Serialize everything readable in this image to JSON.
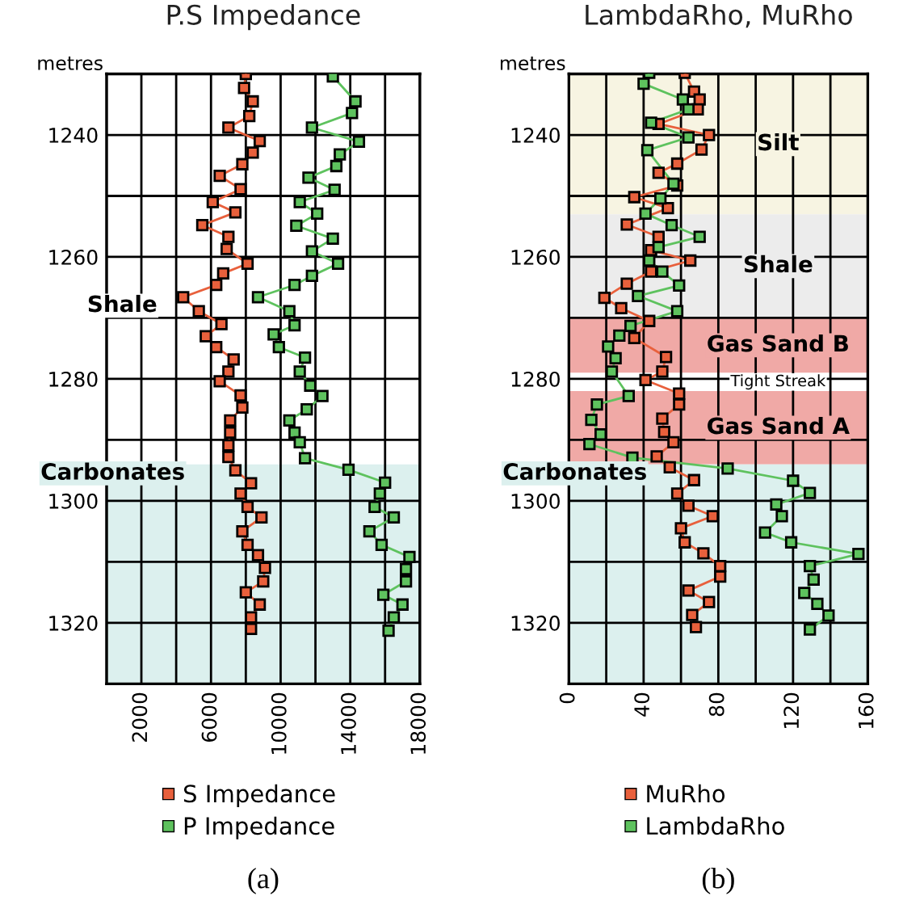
{
  "chart_data": [
    {
      "type": "line",
      "title": "P.S Impedance",
      "ylabel": "metres",
      "orientation": "horizontal",
      "marker": "square",
      "line_style": "solid",
      "grid": true,
      "legend": "bottom",
      "xlim": [
        0,
        18000
      ],
      "xticks": [
        {
          "value": 0,
          "label": null
        },
        2000,
        {
          "value": 4000,
          "label": null
        },
        6000,
        {
          "value": 8000,
          "label": null
        },
        10000,
        {
          "value": 12000,
          "label": null
        },
        14000,
        {
          "value": 16000,
          "label": null
        },
        18000
      ],
      "ylim": [
        1330,
        1230
      ],
      "yticks": [
        {
          "value": 1230,
          "label": null
        },
        1240,
        {
          "value": 1250,
          "label": null
        },
        1260,
        {
          "value": 1270,
          "label": null
        },
        1280,
        {
          "value": 1290,
          "label": null
        },
        1300,
        {
          "value": 1310,
          "label": null
        },
        1320,
        {
          "value": 1330,
          "label": null
        }
      ],
      "bands": [
        {
          "axis": "y",
          "from": 1294,
          "to": 1330,
          "color": "#dcf0ee",
          "label": "Carbonates"
        }
      ],
      "annotations": [
        "Shale",
        "(a)"
      ],
      "series": [
        {
          "name": "S Impedance",
          "color": "#e8603c",
          "x": [
            1230,
            1232.3,
            1234.5,
            1236.9,
            1238.8,
            1241,
            1242.9,
            1244.8,
            1246.7,
            1248.9,
            1251,
            1252.7,
            1254.8,
            1256.7,
            1258.7,
            1261.1,
            1262.7,
            1264.6,
            1266.6,
            1268.9,
            1271,
            1273,
            1274.8,
            1276.8,
            1278.8,
            1280.4,
            1282.7,
            1284.7,
            1286.8,
            1288.8,
            1290.9,
            1292.8,
            1295,
            1297.1,
            1298.8,
            1301,
            1302.7,
            1305,
            1307.2,
            1308.9,
            1311,
            1313.2,
            1315,
            1317,
            1319.1,
            1321
          ],
          "values": [
            8000,
            7900,
            8400,
            8200,
            7000,
            8800,
            8400,
            7800,
            6500,
            7700,
            6100,
            7400,
            5500,
            7000,
            6900,
            8100,
            6700,
            6300,
            4400,
            5300,
            6600,
            5700,
            6300,
            7300,
            7000,
            6500,
            7700,
            7800,
            7100,
            7100,
            7000,
            7000,
            7400,
            8300,
            7700,
            8100,
            8900,
            7800,
            8100,
            8700,
            9100,
            9000,
            8000,
            8800,
            8300,
            8300
          ]
        },
        {
          "name": "P Impedance",
          "color": "#5ec25e",
          "x": [
            1230.4,
            1234.5,
            1236.4,
            1238.8,
            1241.1,
            1243.2,
            1245.1,
            1247,
            1249,
            1251,
            1252.9,
            1254.9,
            1257,
            1259.1,
            1261.1,
            1263.1,
            1264.6,
            1266.6,
            1268.9,
            1271.2,
            1272.7,
            1274.8,
            1276.5,
            1278.8,
            1281.1,
            1282.8,
            1285,
            1286.8,
            1288.8,
            1290.4,
            1293,
            1294.9,
            1297,
            1298.8,
            1301,
            1302.7,
            1305,
            1307.2,
            1309.2,
            1311.2,
            1313.2,
            1315.4,
            1317,
            1319.1,
            1321.3
          ],
          "values": [
            13000,
            14300,
            14100,
            11800,
            14500,
            13400,
            13200,
            11600,
            13100,
            11100,
            12100,
            10900,
            13000,
            11800,
            13300,
            11800,
            10800,
            8700,
            10500,
            10800,
            9600,
            9900,
            11400,
            11100,
            11700,
            12400,
            11500,
            10500,
            10800,
            11100,
            11400,
            13900,
            16000,
            15700,
            15400,
            16500,
            15100,
            15800,
            17400,
            17200,
            17200,
            15900,
            17000,
            16500,
            16200
          ]
        }
      ]
    },
    {
      "type": "line",
      "title": "LambdaRho, MuRho",
      "ylabel": "metres",
      "orientation": "horizontal",
      "marker": "square",
      "line_style": "solid",
      "grid": true,
      "legend": "bottom",
      "xlim": [
        0,
        160
      ],
      "xticks": [
        0,
        {
          "value": 20,
          "label": null
        },
        40,
        {
          "value": 60,
          "label": null
        },
        80,
        {
          "value": 100,
          "label": null
        },
        120,
        {
          "value": 140,
          "label": null
        },
        160
      ],
      "ylim": [
        1330,
        1230
      ],
      "yticks": [
        {
          "value": 1230,
          "label": null
        },
        1240,
        {
          "value": 1250,
          "label": null
        },
        1260,
        {
          "value": 1270,
          "label": null
        },
        1280,
        {
          "value": 1290,
          "label": null
        },
        1300,
        {
          "value": 1310,
          "label": null
        },
        1320,
        {
          "value": 1330,
          "label": null
        }
      ],
      "bands": [
        {
          "axis": "y",
          "from": 1230,
          "to": 1253,
          "color": "#f7f4e2",
          "label": "Silt"
        },
        {
          "axis": "y",
          "from": 1253,
          "to": 1270,
          "color": "#ececec",
          "label": "Shale"
        },
        {
          "axis": "y",
          "from": 1270,
          "to": 1279,
          "color": "#f0a9a6",
          "label": "Gas Sand B"
        },
        {
          "axis": "y",
          "from": 1279,
          "to": 1282,
          "color": "#ffffff",
          "label": "Tight Streak"
        },
        {
          "axis": "y",
          "from": 1282,
          "to": 1294,
          "color": "#f0a9a6",
          "label": "Gas Sand A"
        },
        {
          "axis": "y",
          "from": 1294,
          "to": 1330,
          "color": "#dcf0ee",
          "label": "Carbonates"
        }
      ],
      "annotations": [
        "(b)"
      ],
      "series": [
        {
          "name": "MuRho",
          "color": "#e8603c",
          "x": [
            1229.8,
            1232.9,
            1234.2,
            1235.8,
            1238.2,
            1240,
            1242.4,
            1244.7,
            1246.2,
            1248.3,
            1250.2,
            1252,
            1254.7,
            1256.7,
            1258.9,
            1260.6,
            1262.4,
            1264.4,
            1266.7,
            1268.4,
            1270.5,
            1273.3,
            1276.4,
            1278.8,
            1280.2,
            1282.4,
            1284.2,
            1286.5,
            1288.7,
            1290.4,
            1292.7,
            1294.5,
            1296.6,
            1298.8,
            1300.8,
            1302.5,
            1304.5,
            1306.8,
            1308.6,
            1310.7,
            1312.4,
            1314.7,
            1316.6,
            1318.7,
            1320.7
          ],
          "values": [
            62,
            67,
            70,
            69,
            48,
            75,
            71,
            58,
            48,
            58,
            35,
            53,
            31,
            48,
            44,
            65,
            44,
            31,
            19,
            28,
            43,
            35,
            52,
            50,
            41,
            59,
            59,
            50,
            51,
            56,
            47,
            54,
            67,
            58,
            64,
            77,
            60,
            62,
            72,
            81,
            81,
            64,
            75,
            66,
            68
          ]
        },
        {
          "name": "LambdaRho",
          "color": "#5ec25e",
          "x": [
            1229.8,
            1231.6,
            1234.2,
            1235.8,
            1238,
            1240.4,
            1242.5,
            1248,
            1250.4,
            1252.9,
            1254.8,
            1256.7,
            1258.4,
            1260.6,
            1262.4,
            1264.7,
            1266.4,
            1268.9,
            1271.3,
            1272.9,
            1274.7,
            1276.6,
            1278.8,
            1282.8,
            1284.2,
            1286.7,
            1289.1,
            1290.7,
            1292.9,
            1294.7,
            1296.7,
            1298.7,
            1300.6,
            1302.5,
            1305.2,
            1306.8,
            1308.7,
            1310.7,
            1312.9,
            1315.1,
            1316.9,
            1318.8,
            1321.1
          ],
          "values": [
            43,
            40,
            61,
            64,
            44,
            64,
            42,
            56,
            49,
            41,
            55,
            70,
            48,
            43,
            50,
            59,
            37,
            58,
            33,
            27,
            21,
            25,
            23,
            32,
            15,
            12,
            17,
            11,
            34,
            85,
            120,
            129,
            111,
            114,
            105,
            119,
            155,
            129,
            131,
            126,
            133,
            139,
            129
          ]
        }
      ]
    }
  ]
}
